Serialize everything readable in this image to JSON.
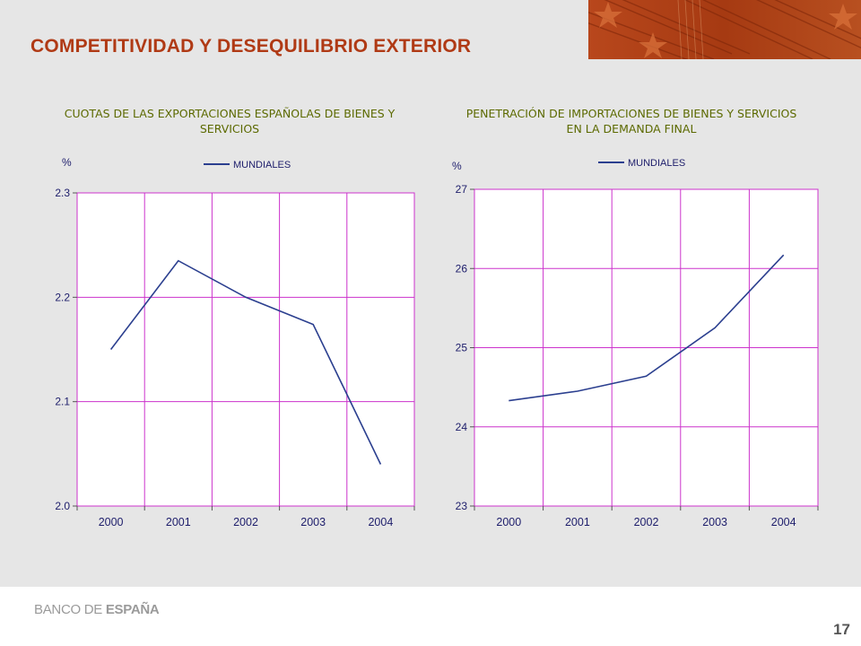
{
  "slide": {
    "title": "COMPETITIVIDAD Y DESEQUILIBRIO EXTERIOR",
    "page_number": "17",
    "logo_part1": "BANCO DE ",
    "logo_part2": "ESPAÑA"
  },
  "colors": {
    "title": "#b03a15",
    "chart_title": "#5c6a00",
    "grid": "#cc33cc",
    "line": "#2b3f8f",
    "axis_text": "#1d1d6b",
    "plot_bg": "#ffffff",
    "banner": "#b8471c"
  },
  "chart_data": [
    {
      "type": "line",
      "title_lines": [
        "CUOTAS DE LAS EXPORTACIONES ESPAÑOLAS DE BIENES Y",
        "SERVICIOS"
      ],
      "unit": "%",
      "categories": [
        "2000",
        "2001",
        "2002",
        "2003",
        "2004"
      ],
      "series": [
        {
          "name": "MUNDIALES",
          "values": [
            2.15,
            2.235,
            2.2,
            2.174,
            2.04
          ]
        }
      ],
      "ylim": [
        2.0,
        2.3
      ],
      "yticks": [
        2.0,
        2.1,
        2.2,
        2.3
      ],
      "ytick_labels": [
        "2.0",
        "2.1",
        "2.2",
        "2.3"
      ],
      "grid": true,
      "legend_position": "top-center"
    },
    {
      "type": "line",
      "title_lines": [
        "PENETRACIÓN DE IMPORTACIONES DE BIENES Y SERVICIOS",
        "EN LA DEMANDA FINAL"
      ],
      "unit": "%",
      "categories": [
        "2000",
        "2001",
        "2002",
        "2003",
        "2004"
      ],
      "series": [
        {
          "name": "MUNDIALES",
          "values": [
            24.33,
            24.45,
            24.64,
            25.25,
            26.17
          ]
        }
      ],
      "ylim": [
        23,
        27
      ],
      "yticks": [
        23,
        24,
        25,
        26,
        27
      ],
      "ytick_labels": [
        "23",
        "24",
        "25",
        "26",
        "27"
      ],
      "grid": true,
      "legend_position": "top-center"
    }
  ]
}
